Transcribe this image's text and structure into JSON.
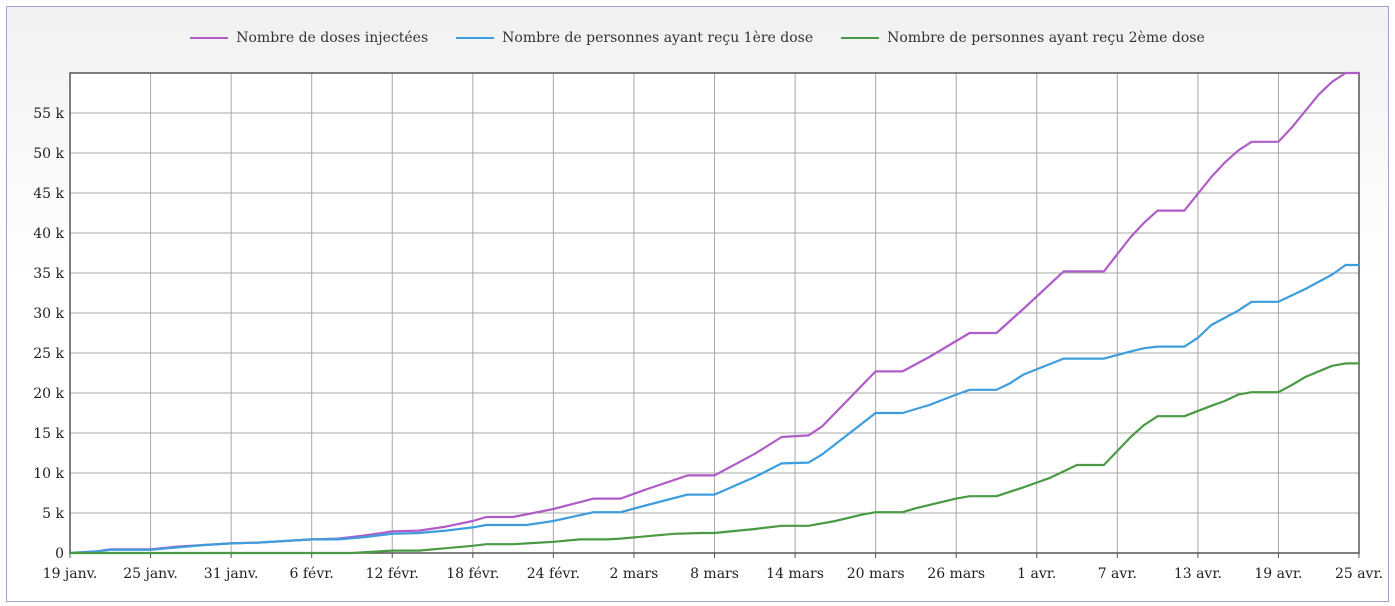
{
  "chart_data": {
    "type": "line",
    "title": "",
    "xlabel": "",
    "ylabel": "",
    "legend_position": "top",
    "grid": true,
    "ylim": [
      0,
      60000
    ],
    "xlim": [
      "2021-01-19",
      "2021-04-25"
    ],
    "y_ticks": [
      0,
      5000,
      10000,
      15000,
      20000,
      25000,
      30000,
      35000,
      40000,
      45000,
      50000,
      55000
    ],
    "y_tick_labels": [
      "0",
      "5 k",
      "10 k",
      "15 k",
      "20 k",
      "25 k",
      "30 k",
      "35 k",
      "40 k",
      "45 k",
      "50 k",
      "55 k"
    ],
    "x_ticks": [
      "2021-01-19",
      "2021-01-25",
      "2021-01-31",
      "2021-02-06",
      "2021-02-12",
      "2021-02-18",
      "2021-02-24",
      "2021-03-02",
      "2021-03-08",
      "2021-03-14",
      "2021-03-20",
      "2021-03-26",
      "2021-04-01",
      "2021-04-07",
      "2021-04-13",
      "2021-04-19",
      "2021-04-25"
    ],
    "x_tick_labels": [
      "19 janv.",
      "25 janv.",
      "31 janv.",
      "6 févr.",
      "12 févr.",
      "18 févr.",
      "24 févr.",
      "2 mars",
      "8 mars",
      "14 mars",
      "20 mars",
      "26 mars",
      "1 avr.",
      "7 avr.",
      "13 avr.",
      "19 avr.",
      "25 avr."
    ],
    "series": [
      {
        "name": "Nombre de doses injectées",
        "color": "#b05cc6",
        "points": [
          [
            "2021-01-19",
            0
          ],
          [
            "2021-01-21",
            200
          ],
          [
            "2021-01-22",
            450
          ],
          [
            "2021-01-24",
            450
          ],
          [
            "2021-01-25",
            450
          ],
          [
            "2021-01-27",
            800
          ],
          [
            "2021-01-29",
            1000
          ],
          [
            "2021-01-31",
            1200
          ],
          [
            "2021-02-02",
            1300
          ],
          [
            "2021-02-04",
            1500
          ],
          [
            "2021-02-06",
            1700
          ],
          [
            "2021-02-08",
            1800
          ],
          [
            "2021-02-10",
            2200
          ],
          [
            "2021-02-12",
            2700
          ],
          [
            "2021-02-14",
            2800
          ],
          [
            "2021-02-16",
            3300
          ],
          [
            "2021-02-18",
            4000
          ],
          [
            "2021-02-19",
            4500
          ],
          [
            "2021-02-21",
            4500
          ],
          [
            "2021-02-24",
            5500
          ],
          [
            "2021-02-27",
            6800
          ],
          [
            "2021-03-01",
            6800
          ],
          [
            "2021-03-03",
            8000
          ],
          [
            "2021-03-06",
            9700
          ],
          [
            "2021-03-08",
            9700
          ],
          [
            "2021-03-11",
            12400
          ],
          [
            "2021-03-13",
            14500
          ],
          [
            "2021-03-15",
            14700
          ],
          [
            "2021-03-16",
            15800
          ],
          [
            "2021-03-20",
            22700
          ],
          [
            "2021-03-22",
            22700
          ],
          [
            "2021-03-24",
            24500
          ],
          [
            "2021-03-26",
            26500
          ],
          [
            "2021-03-27",
            27500
          ],
          [
            "2021-03-29",
            27500
          ],
          [
            "2021-03-30",
            29000
          ],
          [
            "2021-03-31",
            30500
          ],
          [
            "2021-04-03",
            35200
          ],
          [
            "2021-04-06",
            35200
          ],
          [
            "2021-04-08",
            39500
          ],
          [
            "2021-04-09",
            41300
          ],
          [
            "2021-04-10",
            42800
          ],
          [
            "2021-04-12",
            42800
          ],
          [
            "2021-04-14",
            47000
          ],
          [
            "2021-04-15",
            48800
          ],
          [
            "2021-04-16",
            50300
          ],
          [
            "2021-04-17",
            51400
          ],
          [
            "2021-04-19",
            51400
          ],
          [
            "2021-04-20",
            53200
          ],
          [
            "2021-04-22",
            57300
          ],
          [
            "2021-04-23",
            58900
          ],
          [
            "2021-04-24",
            60000
          ],
          [
            "2021-04-25",
            60000
          ]
        ]
      },
      {
        "name": "Nombre de personnes ayant reçu 1ère dose",
        "color": "#3d9ddd",
        "points": [
          [
            "2021-01-19",
            0
          ],
          [
            "2021-01-21",
            200
          ],
          [
            "2021-01-22",
            400
          ],
          [
            "2021-01-24",
            400
          ],
          [
            "2021-01-25",
            400
          ],
          [
            "2021-01-27",
            700
          ],
          [
            "2021-01-29",
            1000
          ],
          [
            "2021-01-31",
            1200
          ],
          [
            "2021-02-02",
            1300
          ],
          [
            "2021-02-04",
            1500
          ],
          [
            "2021-02-06",
            1700
          ],
          [
            "2021-02-08",
            1700
          ],
          [
            "2021-02-10",
            2000
          ],
          [
            "2021-02-12",
            2400
          ],
          [
            "2021-02-14",
            2500
          ],
          [
            "2021-02-16",
            2800
          ],
          [
            "2021-02-18",
            3200
          ],
          [
            "2021-02-19",
            3500
          ],
          [
            "2021-02-22",
            3500
          ],
          [
            "2021-02-24",
            4000
          ],
          [
            "2021-02-27",
            5100
          ],
          [
            "2021-03-01",
            5100
          ],
          [
            "2021-03-03",
            6000
          ],
          [
            "2021-03-06",
            7300
          ],
          [
            "2021-03-08",
            7300
          ],
          [
            "2021-03-11",
            9500
          ],
          [
            "2021-03-13",
            11200
          ],
          [
            "2021-03-15",
            11300
          ],
          [
            "2021-03-16",
            12300
          ],
          [
            "2021-03-20",
            17500
          ],
          [
            "2021-03-22",
            17500
          ],
          [
            "2021-03-24",
            18500
          ],
          [
            "2021-03-26",
            19800
          ],
          [
            "2021-03-27",
            20400
          ],
          [
            "2021-03-29",
            20400
          ],
          [
            "2021-03-30",
            21200
          ],
          [
            "2021-03-31",
            22300
          ],
          [
            "2021-04-03",
            24300
          ],
          [
            "2021-04-06",
            24300
          ],
          [
            "2021-04-08",
            25200
          ],
          [
            "2021-04-09",
            25600
          ],
          [
            "2021-04-10",
            25800
          ],
          [
            "2021-04-12",
            25800
          ],
          [
            "2021-04-13",
            26900
          ],
          [
            "2021-04-14",
            28500
          ],
          [
            "2021-04-16",
            30300
          ],
          [
            "2021-04-17",
            31400
          ],
          [
            "2021-04-19",
            31400
          ],
          [
            "2021-04-21",
            33000
          ],
          [
            "2021-04-23",
            34800
          ],
          [
            "2021-04-24",
            36000
          ],
          [
            "2021-04-25",
            36000
          ]
        ]
      },
      {
        "name": "Nombre de personnes ayant reçu 2ème dose",
        "color": "#4a9a45",
        "points": [
          [
            "2021-01-19",
            0
          ],
          [
            "2021-02-09",
            0
          ],
          [
            "2021-02-12",
            300
          ],
          [
            "2021-02-14",
            300
          ],
          [
            "2021-02-16",
            600
          ],
          [
            "2021-02-18",
            900
          ],
          [
            "2021-02-19",
            1100
          ],
          [
            "2021-02-21",
            1100
          ],
          [
            "2021-02-23",
            1300
          ],
          [
            "2021-02-24",
            1400
          ],
          [
            "2021-02-26",
            1700
          ],
          [
            "2021-02-28",
            1700
          ],
          [
            "2021-03-01",
            1800
          ],
          [
            "2021-03-03",
            2100
          ],
          [
            "2021-03-05",
            2400
          ],
          [
            "2021-03-07",
            2500
          ],
          [
            "2021-03-08",
            2500
          ],
          [
            "2021-03-11",
            3000
          ],
          [
            "2021-03-13",
            3400
          ],
          [
            "2021-03-15",
            3400
          ],
          [
            "2021-03-17",
            4000
          ],
          [
            "2021-03-19",
            4800
          ],
          [
            "2021-03-20",
            5100
          ],
          [
            "2021-03-22",
            5100
          ],
          [
            "2021-03-23",
            5600
          ],
          [
            "2021-03-26",
            6800
          ],
          [
            "2021-03-27",
            7100
          ],
          [
            "2021-03-29",
            7100
          ],
          [
            "2021-03-31",
            8200
          ],
          [
            "2021-04-02",
            9400
          ],
          [
            "2021-04-04",
            11000
          ],
          [
            "2021-04-06",
            11000
          ],
          [
            "2021-04-08",
            14500
          ],
          [
            "2021-04-09",
            16000
          ],
          [
            "2021-04-10",
            17100
          ],
          [
            "2021-04-12",
            17100
          ],
          [
            "2021-04-14",
            18400
          ],
          [
            "2021-04-15",
            19000
          ],
          [
            "2021-04-16",
            19800
          ],
          [
            "2021-04-17",
            20100
          ],
          [
            "2021-04-19",
            20100
          ],
          [
            "2021-04-20",
            21000
          ],
          [
            "2021-04-21",
            22000
          ],
          [
            "2021-04-23",
            23400
          ],
          [
            "2021-04-24",
            23700
          ],
          [
            "2021-04-25",
            23700
          ]
        ]
      }
    ]
  }
}
